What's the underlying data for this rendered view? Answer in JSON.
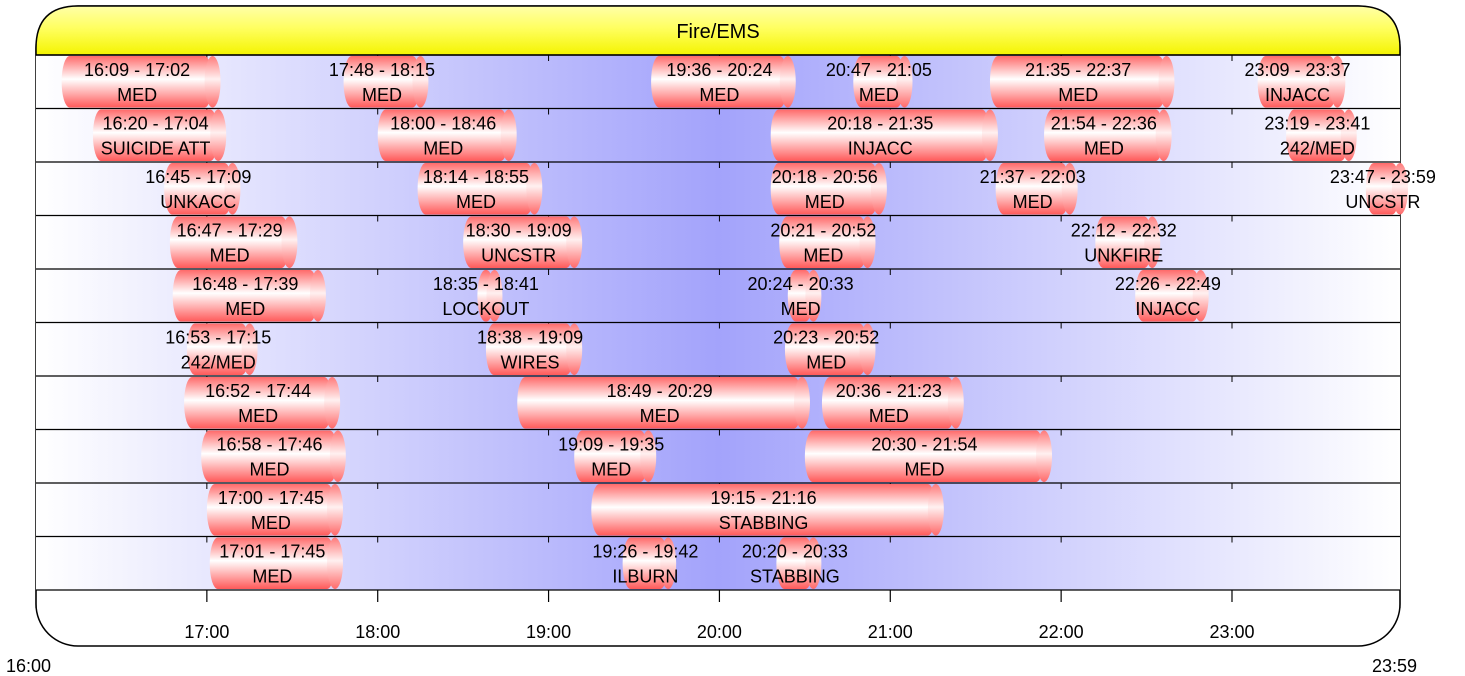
{
  "chart_data": {
    "type": "gantt",
    "title": "Fire/EMS",
    "x_start": "16:00",
    "x_end": "23:59",
    "x_ticks": [
      "17:00",
      "18:00",
      "19:00",
      "20:00",
      "21:00",
      "22:00",
      "23:00"
    ],
    "range_start_label": "16:00",
    "range_end_label": "23:59",
    "rows": [
      [
        {
          "time": "16:09 - 17:02",
          "label": "MED",
          "start": "16:09",
          "end": "17:02"
        },
        {
          "time": "17:48 - 18:15",
          "label": "MED",
          "start": "17:48",
          "end": "18:15"
        },
        {
          "time": "19:36 - 20:24",
          "label": "MED",
          "start": "19:36",
          "end": "20:24"
        },
        {
          "time": "20:47 - 21:05",
          "label": "MED",
          "start": "20:47",
          "end": "21:05"
        },
        {
          "time": "21:35 - 22:37",
          "label": "MED",
          "start": "21:35",
          "end": "22:37"
        },
        {
          "time": "23:09 - 23:37",
          "label": "INJACC",
          "start": "23:09",
          "end": "23:37"
        }
      ],
      [
        {
          "time": "16:20 - 17:04",
          "label": "SUICIDE ATT",
          "start": "16:20",
          "end": "17:04"
        },
        {
          "time": "18:00 - 18:46",
          "label": "MED",
          "start": "18:00",
          "end": "18:46"
        },
        {
          "time": "20:18 - 21:35",
          "label": "INJACC",
          "start": "20:18",
          "end": "21:35"
        },
        {
          "time": "21:54 - 22:36",
          "label": "MED",
          "start": "21:54",
          "end": "22:36"
        },
        {
          "time": "23:19 - 23:41",
          "label": "242/MED",
          "start": "23:19",
          "end": "23:41"
        }
      ],
      [
        {
          "time": "16:45 - 17:09",
          "label": "UNKACC",
          "start": "16:45",
          "end": "17:09"
        },
        {
          "time": "18:14 - 18:55",
          "label": "MED",
          "start": "18:14",
          "end": "18:55"
        },
        {
          "time": "20:18 - 20:56",
          "label": "MED",
          "start": "20:18",
          "end": "20:56"
        },
        {
          "time": "21:37 - 22:03",
          "label": "MED",
          "start": "21:37",
          "end": "22:03"
        },
        {
          "time": "23:47 - 23:59",
          "label": "UNCSTR",
          "start": "23:47",
          "end": "23:59"
        }
      ],
      [
        {
          "time": "16:47 - 17:29",
          "label": "MED",
          "start": "16:47",
          "end": "17:29"
        },
        {
          "time": "18:30 - 19:09",
          "label": "UNCSTR",
          "start": "18:30",
          "end": "19:09"
        },
        {
          "time": "20:21 - 20:52",
          "label": "MED",
          "start": "20:21",
          "end": "20:52"
        },
        {
          "time": "22:12 - 22:32",
          "label": "UNKFIRE",
          "start": "22:12",
          "end": "22:32"
        }
      ],
      [
        {
          "time": "16:48 - 17:39",
          "label": "MED",
          "start": "16:48",
          "end": "17:39"
        },
        {
          "time": "18:35 - 18:41",
          "label": "LOCKOUT",
          "start": "18:35",
          "end": "18:41"
        },
        {
          "time": "20:24 - 20:33",
          "label": "MED",
          "start": "20:24",
          "end": "20:33"
        },
        {
          "time": "22:26 - 22:49",
          "label": "INJACC",
          "start": "22:26",
          "end": "22:49"
        }
      ],
      [
        {
          "time": "16:53 - 17:15",
          "label": "242/MED",
          "start": "16:53",
          "end": "17:15"
        },
        {
          "time": "18:38 - 19:09",
          "label": "WIRES",
          "start": "18:38",
          "end": "19:09"
        },
        {
          "time": "20:23 - 20:52",
          "label": "MED",
          "start": "20:23",
          "end": "20:52"
        }
      ],
      [
        {
          "time": "16:52 - 17:44",
          "label": "MED",
          "start": "16:52",
          "end": "17:44"
        },
        {
          "time": "18:49 - 20:29",
          "label": "MED",
          "start": "18:49",
          "end": "20:29"
        },
        {
          "time": "20:36 - 21:23",
          "label": "MED",
          "start": "20:36",
          "end": "21:23"
        }
      ],
      [
        {
          "time": "16:58 - 17:46",
          "label": "MED",
          "start": "16:58",
          "end": "17:46"
        },
        {
          "time": "19:09 - 19:35",
          "label": "MED",
          "start": "19:09",
          "end": "19:35"
        },
        {
          "time": "20:30 - 21:54",
          "label": "MED",
          "start": "20:30",
          "end": "21:54"
        }
      ],
      [
        {
          "time": "17:00 - 17:45",
          "label": "MED",
          "start": "17:00",
          "end": "17:45"
        },
        {
          "time": "19:15 - 21:16",
          "label": "STABBING",
          "start": "19:15",
          "end": "21:16"
        }
      ],
      [
        {
          "time": "17:01 - 17:45",
          "label": "MED",
          "start": "17:01",
          "end": "17:45"
        },
        {
          "time": "19:26 - 19:42",
          "label": "ILBURN",
          "start": "19:26",
          "end": "19:42"
        },
        {
          "time": "20:20 - 20:33",
          "label": "STABBING",
          "start": "20:20",
          "end": "20:33"
        }
      ]
    ]
  }
}
